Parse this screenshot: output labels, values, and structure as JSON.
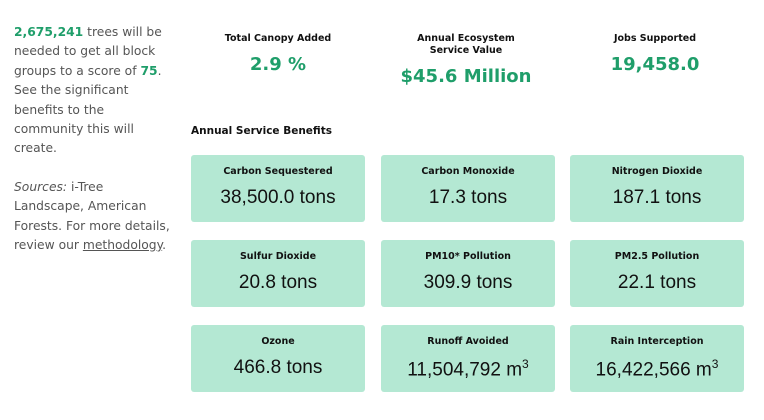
{
  "intro": {
    "trees": "2,675,241",
    "text_a": " trees will be needed to get all block groups to a score of ",
    "score": "75",
    "text_b": ". See the significant benefits to the community this will create."
  },
  "sources": {
    "label": "Sources:",
    "text": " i-Tree Landscape, American Forests. For more details, review our ",
    "link": "methodology",
    "end": "."
  },
  "kpis": [
    {
      "label": "Total Canopy Added",
      "value": "2.9 %"
    },
    {
      "label": "Annual Ecosystem Service Value",
      "value": "$45.6 Million"
    },
    {
      "label": "Jobs Supported",
      "value": "19,458.0"
    }
  ],
  "benefits": {
    "title": "Annual Service Benefits",
    "cards": [
      {
        "label": "Carbon Sequestered",
        "value": "38,500.0",
        "unit": "tons"
      },
      {
        "label": "Carbon Monoxide",
        "value": "17.3",
        "unit": "tons"
      },
      {
        "label": "Nitrogen Dioxide",
        "value": "187.1",
        "unit": "tons"
      },
      {
        "label": "Sulfur Dioxide",
        "value": "20.8",
        "unit": "tons"
      },
      {
        "label": "PM10* Pollution",
        "value": "309.9",
        "unit": "tons"
      },
      {
        "label": "PM2.5 Pollution",
        "value": "22.1",
        "unit": "tons"
      },
      {
        "label": "Ozone",
        "value": "466.8",
        "unit": "tons"
      },
      {
        "label": "Runoff Avoided",
        "value": "11,504,792",
        "unit": "m",
        "unit_exponent": "3"
      },
      {
        "label": "Rain Interception",
        "value": "16,422,566",
        "unit": "m",
        "unit_exponent": "3"
      }
    ]
  }
}
